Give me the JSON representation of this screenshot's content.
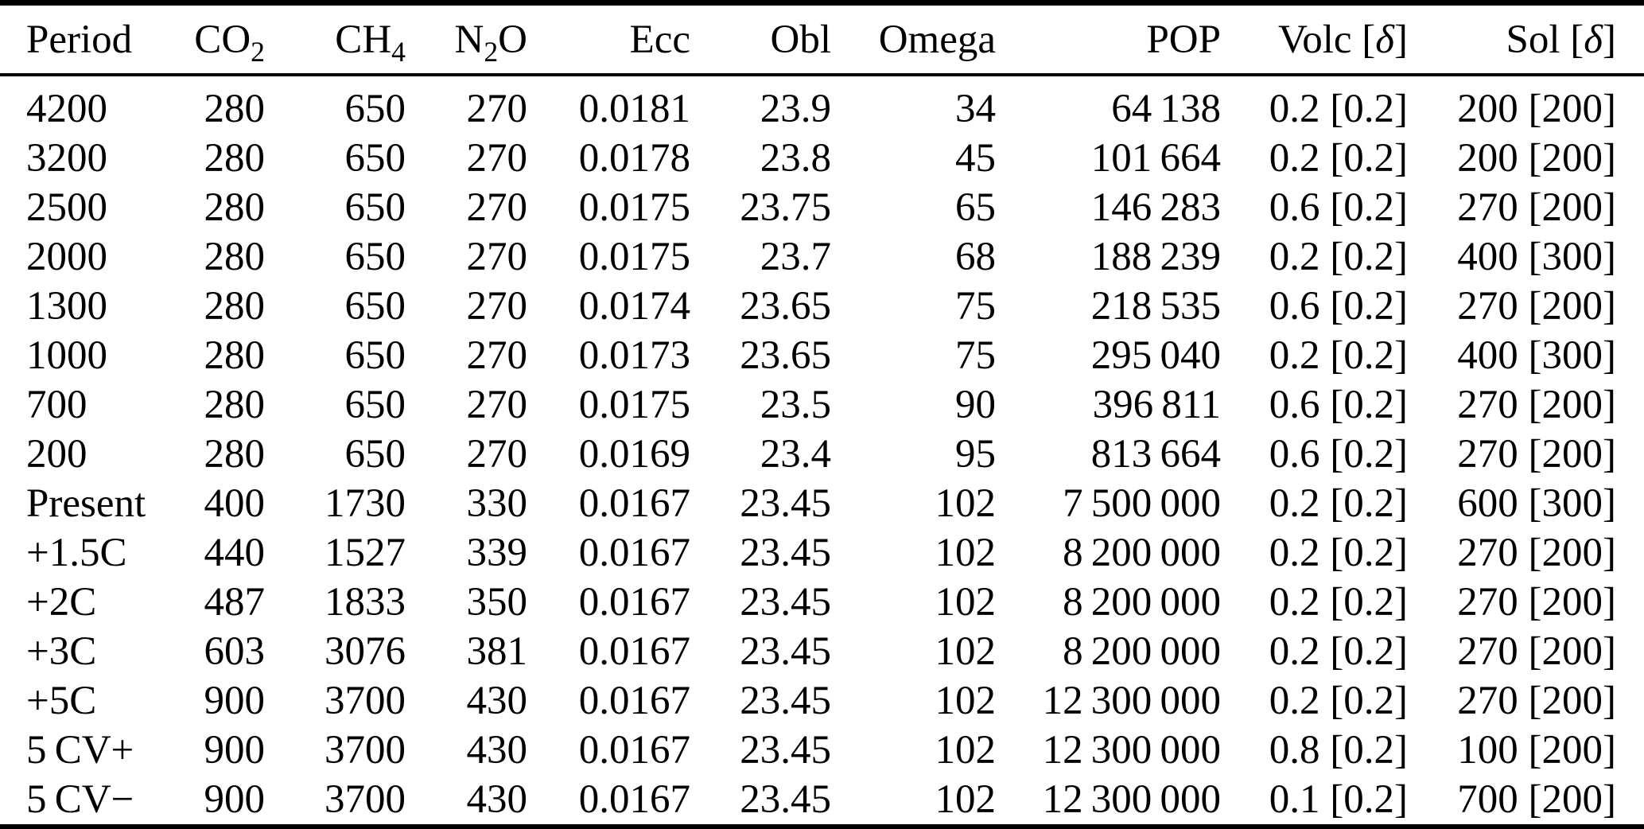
{
  "table": {
    "colors": {
      "text": "#000000",
      "background": "#ffffff",
      "rule": "#000000"
    },
    "columns": [
      {
        "id": "period",
        "align": "left",
        "label_parts": [
          {
            "t": "Period"
          }
        ]
      },
      {
        "id": "co2",
        "align": "right",
        "label_parts": [
          {
            "t": "CO"
          },
          {
            "t": "2",
            "sub": true
          }
        ]
      },
      {
        "id": "ch4",
        "align": "right",
        "label_parts": [
          {
            "t": "CH"
          },
          {
            "t": "4",
            "sub": true
          }
        ]
      },
      {
        "id": "n2o",
        "align": "right",
        "label_parts": [
          {
            "t": "N"
          },
          {
            "t": "2",
            "sub": true
          },
          {
            "t": "O"
          }
        ]
      },
      {
        "id": "ecc",
        "align": "right",
        "label_parts": [
          {
            "t": "Ecc"
          }
        ]
      },
      {
        "id": "obl",
        "align": "right",
        "label_parts": [
          {
            "t": "Obl"
          }
        ]
      },
      {
        "id": "omega",
        "align": "right",
        "label_parts": [
          {
            "t": "Omega"
          }
        ]
      },
      {
        "id": "pop",
        "align": "right",
        "label_parts": [
          {
            "t": "POP"
          }
        ]
      },
      {
        "id": "volc",
        "align": "right",
        "label_parts": [
          {
            "t": "Volc ["
          },
          {
            "t": "δ",
            "italic": true
          },
          {
            "t": "]"
          }
        ]
      },
      {
        "id": "sol",
        "align": "right",
        "label_parts": [
          {
            "t": "Sol ["
          },
          {
            "t": "δ",
            "italic": true
          },
          {
            "t": "]"
          }
        ]
      }
    ],
    "rows": [
      [
        "4200",
        "280",
        "650",
        "270",
        "0.0181",
        "23.9",
        "34",
        "64 138",
        "0.2 [0.2]",
        "200 [200]"
      ],
      [
        "3200",
        "280",
        "650",
        "270",
        "0.0178",
        "23.8",
        "45",
        "101 664",
        "0.2 [0.2]",
        "200 [200]"
      ],
      [
        "2500",
        "280",
        "650",
        "270",
        "0.0175",
        "23.75",
        "65",
        "146 283",
        "0.6 [0.2]",
        "270 [200]"
      ],
      [
        "2000",
        "280",
        "650",
        "270",
        "0.0175",
        "23.7",
        "68",
        "188 239",
        "0.2 [0.2]",
        "400 [300]"
      ],
      [
        "1300",
        "280",
        "650",
        "270",
        "0.0174",
        "23.65",
        "75",
        "218 535",
        "0.6 [0.2]",
        "270 [200]"
      ],
      [
        "1000",
        "280",
        "650",
        "270",
        "0.0173",
        "23.65",
        "75",
        "295 040",
        "0.2 [0.2]",
        "400 [300]"
      ],
      [
        "700",
        "280",
        "650",
        "270",
        "0.0175",
        "23.5",
        "90",
        "396 811",
        "0.6 [0.2]",
        "270 [200]"
      ],
      [
        "200",
        "280",
        "650",
        "270",
        "0.0169",
        "23.4",
        "95",
        "813 664",
        "0.6 [0.2]",
        "270 [200]"
      ],
      [
        "Present",
        "400",
        "1730",
        "330",
        "0.0167",
        "23.45",
        "102",
        "7 500 000",
        "0.2 [0.2]",
        "600 [300]"
      ],
      [
        "+1.5C",
        "440",
        "1527",
        "339",
        "0.0167",
        "23.45",
        "102",
        "8 200 000",
        "0.2 [0.2]",
        "270 [200]"
      ],
      [
        "+2C",
        "487",
        "1833",
        "350",
        "0.0167",
        "23.45",
        "102",
        "8 200 000",
        "0.2 [0.2]",
        "270 [200]"
      ],
      [
        "+3C",
        "603",
        "3076",
        "381",
        "0.0167",
        "23.45",
        "102",
        "8 200 000",
        "0.2 [0.2]",
        "270 [200]"
      ],
      [
        "+5C",
        "900",
        "3700",
        "430",
        "0.0167",
        "23.45",
        "102",
        "12 300 000",
        "0.2 [0.2]",
        "270 [200]"
      ],
      [
        "5 CV+",
        "900",
        "3700",
        "430",
        "0.0167",
        "23.45",
        "102",
        "12 300 000",
        "0.8 [0.2]",
        "100 [200]"
      ],
      [
        "5 CV−",
        "900",
        "3700",
        "430",
        "0.0167",
        "23.45",
        "102",
        "12 300 000",
        "0.1 [0.2]",
        "700 [200]"
      ]
    ]
  }
}
